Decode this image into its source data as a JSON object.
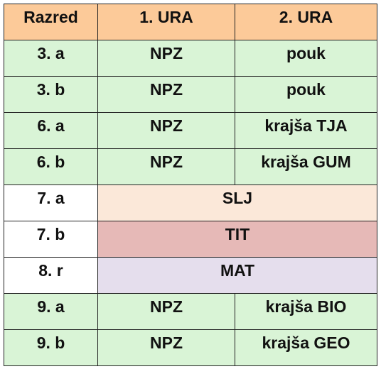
{
  "table": {
    "headers": [
      "Razred",
      "1. URA",
      "2. URA"
    ],
    "rows": [
      {
        "class": "3. a",
        "first": "NPZ",
        "second": "pouk"
      },
      {
        "class": "3. b",
        "first": "NPZ",
        "second": "pouk"
      },
      {
        "class": "6. a",
        "first": "NPZ",
        "second": "krajša TJA"
      },
      {
        "class": "6. b",
        "first": "NPZ",
        "second": "krajša GUM"
      },
      {
        "class": "7. a",
        "merged": "SLJ"
      },
      {
        "class": "7. b",
        "merged": "TIT"
      },
      {
        "class": "8. r",
        "merged": "MAT"
      },
      {
        "class": "9. a",
        "first": "NPZ",
        "second": "krajša BIO"
      },
      {
        "class": "9. b",
        "first": "NPZ",
        "second": "krajša GEO"
      }
    ]
  },
  "colors": {
    "header": "#fcca99",
    "npz_rows": "#d9f4d6",
    "slj": "#fbe8d9",
    "tit": "#e6b9b7",
    "mat": "#e5deed",
    "border": "#222222"
  }
}
